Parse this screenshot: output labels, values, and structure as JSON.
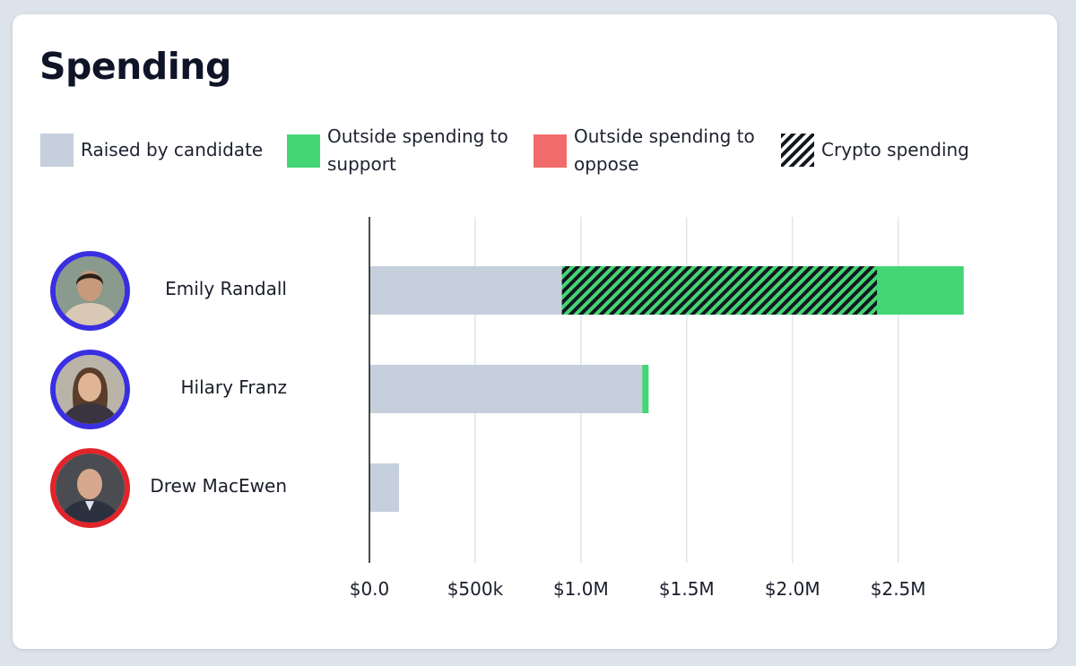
{
  "title": "Spending",
  "legend": [
    {
      "label": "Raised by candidate",
      "color": "#c5d0dc",
      "pattern": "solid"
    },
    {
      "label": "Outside spending to support",
      "color": "#44d675",
      "pattern": "solid"
    },
    {
      "label": "Outside spending to oppose",
      "color": "#f26b6b",
      "pattern": "solid"
    },
    {
      "label": "Crypto spending",
      "color": "#14171f",
      "pattern": "hatch"
    }
  ],
  "candidates": [
    {
      "name": "Emily Randall",
      "ring_color": "#3a2fe0"
    },
    {
      "name": "Hilary Franz",
      "ring_color": "#3a2fe0"
    },
    {
      "name": "Drew MacEwen",
      "ring_color": "#e0242a"
    }
  ],
  "chart_data": {
    "type": "bar",
    "orientation": "horizontal",
    "stacked": true,
    "title": "Spending",
    "categories": [
      "Emily Randall",
      "Hilary Franz",
      "Drew MacEwen"
    ],
    "series": [
      {
        "name": "Raised by candidate",
        "values": [
          910000,
          1290000,
          140000
        ],
        "color": "#c5d0dc"
      },
      {
        "name": "Outside spending to support",
        "values": [
          1900000,
          30000,
          0
        ],
        "color": "#44d675"
      },
      {
        "name": "Outside spending to oppose",
        "values": [
          0,
          0,
          0
        ],
        "color": "#f26b6b"
      }
    ],
    "crypto_overlay": {
      "name": "Crypto spending",
      "values": [
        1490000,
        0,
        0
      ]
    },
    "xlim": [
      0,
      2900000
    ],
    "xticks": [
      0,
      500000,
      1000000,
      1500000,
      2000000,
      2500000
    ],
    "xtick_labels": [
      "$0.0",
      "$500k",
      "$1.0M",
      "$1.5M",
      "$2.0M",
      "$2.5M"
    ],
    "grid": true
  }
}
